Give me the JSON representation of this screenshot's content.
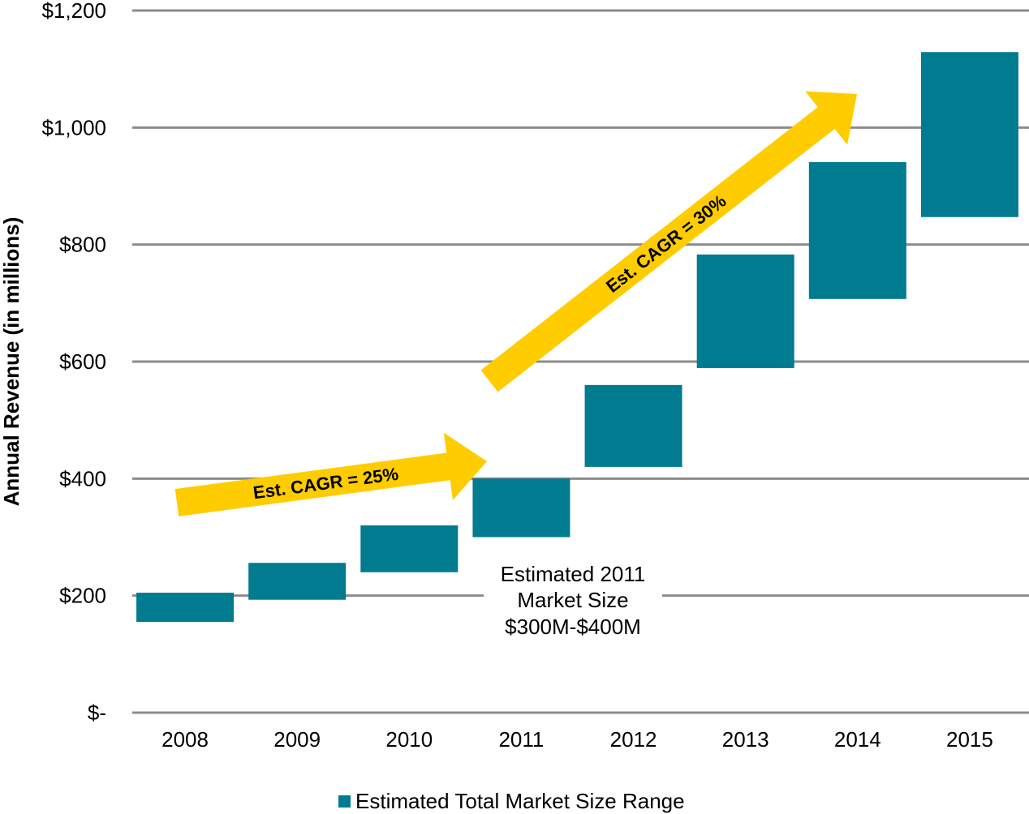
{
  "chart_data": {
    "type": "bar",
    "subtype": "floating-range",
    "title": "",
    "xlabel": "",
    "ylabel": "Annual Revenue (in millions)",
    "ylim": [
      0,
      1200
    ],
    "yticks": [
      0,
      200,
      400,
      600,
      800,
      1000,
      1200
    ],
    "ytick_labels": [
      "$-",
      "$200",
      "$400",
      "$600",
      "$800",
      "$1,000",
      "$1,200"
    ],
    "grid": true,
    "legend_position": "bottom",
    "categories": [
      "2008",
      "2009",
      "2010",
      "2011",
      "2012",
      "2013",
      "2014",
      "2015"
    ],
    "series": [
      {
        "name": "Estimated Total Market Size Range",
        "color": "#007B8F",
        "low": [
          155,
          193,
          240,
          300,
          420,
          589,
          707,
          847
        ],
        "high": [
          205,
          256,
          320,
          400,
          560,
          783,
          941,
          1129
        ]
      }
    ],
    "annotations": {
      "arrow1": "Est. CAGR = 25%",
      "arrow2": "Est. CAGR = 30%",
      "arrow_color": "#FFCC00",
      "callout": [
        "Estimated 2011",
        "Market Size",
        "$300M-$400M"
      ]
    }
  }
}
